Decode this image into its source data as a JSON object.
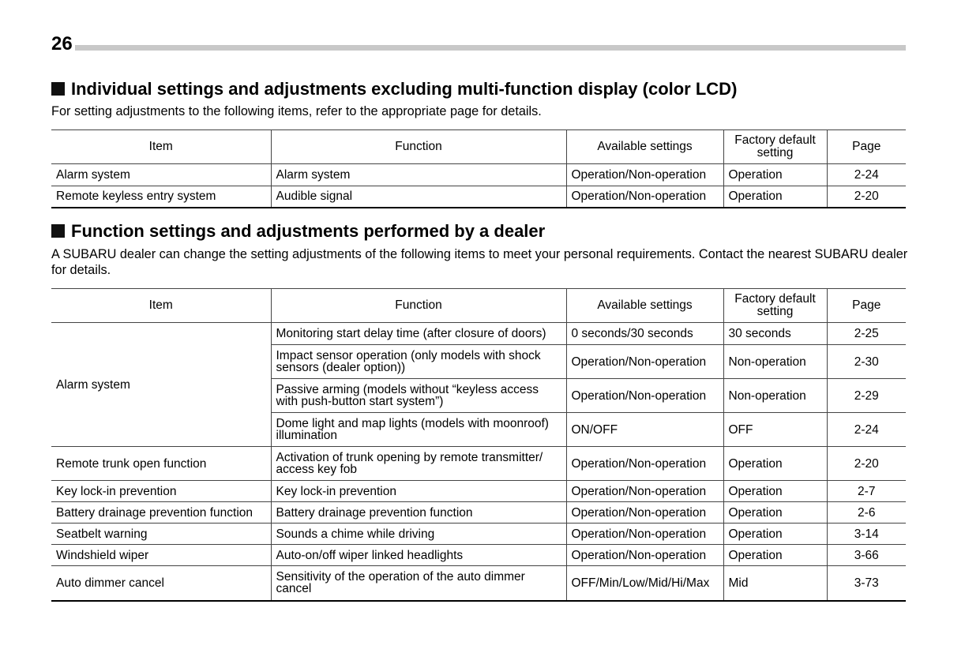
{
  "page_number": "26",
  "section1": {
    "heading": "Individual settings and adjustments excluding multi-function display (color LCD)",
    "intro": "For setting adjustments to the following items, refer to the appropriate page for details.",
    "headers": [
      "Item",
      "Function",
      "Available settings",
      "Factory default setting",
      "Page"
    ],
    "rows": [
      {
        "item": "Alarm system",
        "function": "Alarm system",
        "settings": "Operation/Non-operation",
        "default": "Operation",
        "page": "2-24"
      },
      {
        "item": "Remote keyless entry system",
        "function": "Audible signal",
        "settings": "Operation/Non-operation",
        "default": "Operation",
        "page": "2-20"
      }
    ]
  },
  "section2": {
    "heading": "Function settings and adjustments performed by a dealer",
    "intro": "A SUBARU dealer can change the setting adjustments of the following items to meet your personal requirements. Contact the nearest SUBARU dealer for details.",
    "headers": [
      "Item",
      "Function",
      "Available settings",
      "Factory default setting",
      "Page"
    ],
    "rows": [
      {
        "item": "Alarm system",
        "rowspan": 4,
        "function": "Monitoring start delay time (after closure of doors)",
        "settings": "0 seconds/30 seconds",
        "default": "30 seconds",
        "page": "2-25"
      },
      {
        "function": "Impact sensor operation (only models with shock sensors (dealer option))",
        "settings": "Operation/Non-operation",
        "default": "Non-operation",
        "page": "2-30"
      },
      {
        "function": "Passive arming (models without “keyless access with push-button start system”)",
        "settings": "Operation/Non-operation",
        "default": "Non-operation",
        "page": "2-29"
      },
      {
        "function": "Dome light and map lights (models with moonroof) illumination",
        "settings": "ON/OFF",
        "default": "OFF",
        "page": "2-24"
      },
      {
        "item": "Remote trunk open function",
        "function": "Activation of trunk opening by remote transmitter/ access key fob",
        "settings": "Operation/Non-operation",
        "default": "Operation",
        "page": "2-20"
      },
      {
        "item": "Key lock-in prevention",
        "function": "Key lock-in prevention",
        "settings": "Operation/Non-operation",
        "default": "Operation",
        "page": "2-7"
      },
      {
        "item": "Battery drainage prevention function",
        "function": "Battery drainage prevention function",
        "settings": "Operation/Non-operation",
        "default": "Operation",
        "page": "2-6"
      },
      {
        "item": "Seatbelt warning",
        "function": "Sounds a chime while driving",
        "settings": "Operation/Non-operation",
        "default": "Operation",
        "page": "3-14"
      },
      {
        "item": "Windshield wiper",
        "function": "Auto-on/off wiper linked headlights",
        "settings": "Operation/Non-operation",
        "default": "Operation",
        "page": "3-66"
      },
      {
        "item": "Auto dimmer cancel",
        "function": "Sensitivity of the operation of the auto dimmer cancel",
        "settings": "OFF/Min/Low/Mid/Hi/Max",
        "default": "Mid",
        "page": "3-73"
      }
    ]
  }
}
